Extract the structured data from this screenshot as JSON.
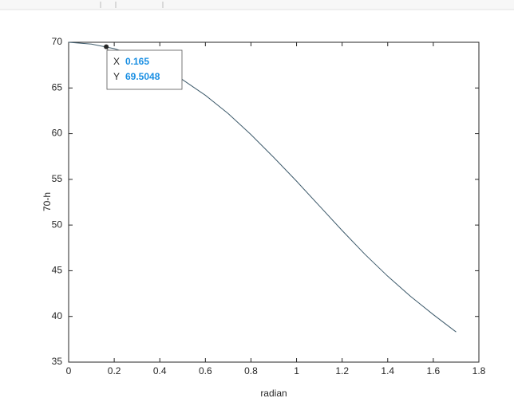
{
  "chart_data": {
    "type": "line",
    "xlabel": "radian",
    "ylabel": "70-h",
    "x": [
      0,
      0.1,
      0.2,
      0.3,
      0.4,
      0.5,
      0.6,
      0.7,
      0.8,
      0.9,
      1.0,
      1.1,
      1.2,
      1.3,
      1.4,
      1.5,
      1.6,
      1.7
    ],
    "values": [
      70,
      69.8,
      69.3,
      68.5,
      67.4,
      65.9,
      64.2,
      62.2,
      59.9,
      57.4,
      54.8,
      52.1,
      49.4,
      46.8,
      44.4,
      42.2,
      40.2,
      38.3
    ],
    "color": "#3d5a6b",
    "xlim": [
      0,
      1.8
    ],
    "xticks": [
      0,
      0.2,
      0.4,
      0.6,
      0.8,
      1,
      1.2,
      1.4,
      1.6,
      1.8
    ],
    "ylim": [
      35,
      70
    ],
    "yticks": [
      35,
      40,
      45,
      50,
      55,
      60,
      65,
      70
    ],
    "grid": false,
    "datatip": {
      "x_label": "X",
      "x": 0.165,
      "y_label": "Y",
      "y": 69.5048
    }
  }
}
